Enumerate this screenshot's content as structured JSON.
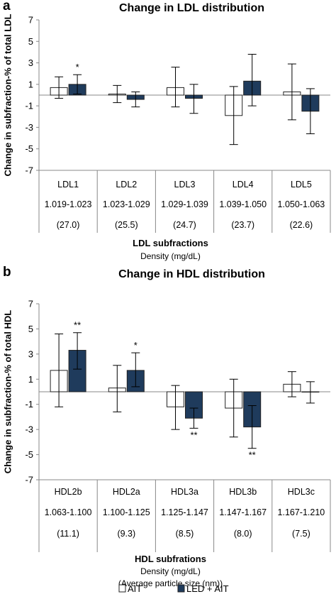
{
  "colors": {
    "ait": "#ffffff",
    "led_ait": "#1f3b5c",
    "axis": "#888888",
    "error": "#000000"
  },
  "legend": {
    "items": [
      {
        "label": "AIT",
        "color": "#ffffff"
      },
      {
        "label": "LED + AIT",
        "color": "#1f3b5c"
      }
    ]
  },
  "chart_data": [
    {
      "panel": "a",
      "type": "bar",
      "title": "Change in LDL distribution",
      "ylabel": "Change in subfraction-% of total LDL",
      "xlabel": "LDL subfractions",
      "xlabel_sub": [
        "Density (mg/dL)"
      ],
      "ylim": [
        -7,
        7
      ],
      "yticks": [
        7,
        5,
        3,
        1,
        -1,
        -3,
        -5,
        -7
      ],
      "categories": [
        {
          "name": "LDL1",
          "density": "1.019-1.023",
          "size": "(27.0)"
        },
        {
          "name": "LDL2",
          "density": "1.023-1.029",
          "size": "(25.5)"
        },
        {
          "name": "LDL3",
          "density": "1.029-1.039",
          "size": "(24.7)"
        },
        {
          "name": "LDL4",
          "density": "1.039-1.050",
          "size": "(23.7)"
        },
        {
          "name": "LDL5",
          "density": "1.050-1.063",
          "size": "(22.6)"
        }
      ],
      "series": [
        {
          "name": "AIT",
          "values": [
            0.7,
            0.1,
            0.7,
            -1.9,
            0.3
          ],
          "err_low": [
            -0.3,
            -0.7,
            -1.1,
            -4.6,
            -2.3
          ],
          "err_high": [
            1.7,
            0.9,
            2.6,
            0.8,
            2.9
          ],
          "sig": [
            "",
            "",
            "",
            "",
            ""
          ]
        },
        {
          "name": "LED + AIT",
          "values": [
            1.0,
            -0.4,
            -0.3,
            1.3,
            -1.5
          ],
          "err_low": [
            0.1,
            -1.1,
            -1.7,
            -1.0,
            -3.6
          ],
          "err_high": [
            1.9,
            0.3,
            1.0,
            3.8,
            0.6
          ],
          "sig": [
            "*",
            "",
            "",
            "",
            ""
          ]
        }
      ]
    },
    {
      "panel": "b",
      "type": "bar",
      "title": "Change in HDL distribution",
      "ylabel": "Change in subfraction-% of total HDL",
      "xlabel": "HDL subfrations",
      "xlabel_sub": [
        "Density (mg/dL)",
        "(Average particle size (nm))"
      ],
      "ylim": [
        -7,
        7
      ],
      "yticks": [
        7,
        5,
        3,
        1,
        -1,
        -3,
        -5,
        -7
      ],
      "categories": [
        {
          "name": "HDL2b",
          "density": "1.063-1.100",
          "size": "(11.1)"
        },
        {
          "name": "HDL2a",
          "density": "1.100-1.125",
          "size": "(9.3)"
        },
        {
          "name": "HDL3a",
          "density": "1.125-1.147",
          "size": "(8.5)"
        },
        {
          "name": "HDL3b",
          "density": "1.147-1.167",
          "size": "(8.0)"
        },
        {
          "name": "HDL3c",
          "density": "1.167-1.210",
          "size": "(7.5)"
        }
      ],
      "series": [
        {
          "name": "AIT",
          "values": [
            1.7,
            0.3,
            -1.2,
            -1.3,
            0.6
          ],
          "err_low": [
            -1.2,
            -1.6,
            -3.0,
            -3.6,
            -0.4
          ],
          "err_high": [
            4.6,
            2.1,
            0.5,
            1.0,
            1.6
          ],
          "sig": [
            "",
            "",
            "",
            "",
            ""
          ]
        },
        {
          "name": "LED + AIT",
          "values": [
            3.3,
            1.7,
            -2.1,
            -2.8,
            0.0
          ],
          "err_low": [
            1.8,
            0.4,
            -2.9,
            -4.5,
            -0.9
          ],
          "err_high": [
            4.7,
            3.1,
            -1.3,
            -1.1,
            0.8
          ],
          "sig": [
            "**",
            "*",
            "**",
            "**",
            ""
          ],
          "sig_pos": [
            "above",
            "above",
            "below",
            "below",
            ""
          ]
        }
      ]
    }
  ]
}
